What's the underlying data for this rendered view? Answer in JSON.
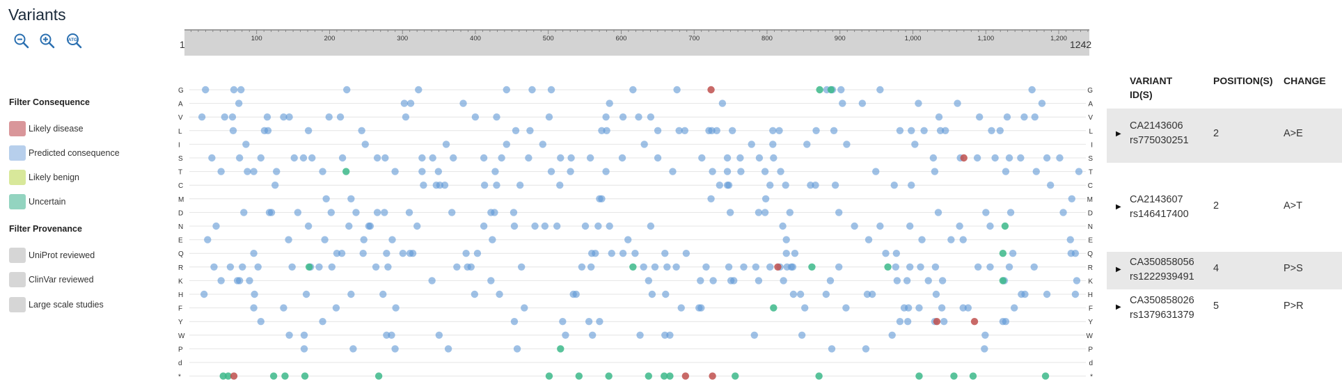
{
  "title": "Variants",
  "toolbar": {
    "zoom_out_icon": "zoom-out-icon",
    "zoom_in_icon": "zoom-in-icon",
    "atg_icon": "atg-zoom-icon",
    "atg_label": "ATG"
  },
  "filters": {
    "consequence_heading": "Filter Consequence",
    "consequence": [
      {
        "label": "Likely disease",
        "color": "#d9969a"
      },
      {
        "label": "Predicted consequence",
        "color": "#b7cfec"
      },
      {
        "label": "Likely benign",
        "color": "#d8e89a"
      },
      {
        "label": "Uncertain",
        "color": "#93d4c0"
      }
    ],
    "provenance_heading": "Filter Provenance",
    "provenance": [
      {
        "label": "UniProt reviewed",
        "color": "#d6d6d6"
      },
      {
        "label": "ClinVar reviewed",
        "color": "#d6d6d6"
      },
      {
        "label": "Large scale studies",
        "color": "#d6d6d6"
      }
    ]
  },
  "ruler": {
    "start": "1",
    "end": "1242",
    "length": 1242,
    "ticks": [
      {
        "value": 100,
        "label": "100"
      },
      {
        "value": 200,
        "label": "200"
      },
      {
        "value": 300,
        "label": "300"
      },
      {
        "value": 400,
        "label": "400"
      },
      {
        "value": 500,
        "label": "500"
      },
      {
        "value": 600,
        "label": "600"
      },
      {
        "value": 700,
        "label": "700"
      },
      {
        "value": 800,
        "label": "800"
      },
      {
        "value": 900,
        "label": "900"
      },
      {
        "value": 1000,
        "label": "1,000"
      },
      {
        "value": 1100,
        "label": "1,100"
      },
      {
        "value": 1200,
        "label": "1,200"
      }
    ]
  },
  "grid": {
    "rows": [
      "G",
      "A",
      "V",
      "L",
      "I",
      "S",
      "T",
      "C",
      "M",
      "D",
      "N",
      "E",
      "Q",
      "R",
      "K",
      "H",
      "F",
      "Y",
      "W",
      "P",
      "d",
      "*"
    ],
    "colors": {
      "predicted": "#5f97d6",
      "disease": "#c0504d",
      "uncertain": "#3cb98a"
    },
    "special_points": [
      {
        "pos": 724,
        "row": "G",
        "cls": "disease"
      },
      {
        "pos": 893,
        "row": "G",
        "cls": "uncertain"
      },
      {
        "pos": 877,
        "row": "G",
        "cls": "uncertain"
      },
      {
        "pos": 1080,
        "row": "S",
        "cls": "disease"
      },
      {
        "pos": 210,
        "row": "T",
        "cls": "uncertain"
      },
      {
        "pos": 1138,
        "row": "N",
        "cls": "uncertain"
      },
      {
        "pos": 1135,
        "row": "Q",
        "cls": "uncertain"
      },
      {
        "pos": 158,
        "row": "R",
        "cls": "uncertain"
      },
      {
        "pos": 614,
        "row": "R",
        "cls": "uncertain"
      },
      {
        "pos": 818,
        "row": "R",
        "cls": "disease"
      },
      {
        "pos": 866,
        "row": "R",
        "cls": "uncertain"
      },
      {
        "pos": 973,
        "row": "R",
        "cls": "uncertain"
      },
      {
        "pos": 1135,
        "row": "K",
        "cls": "uncertain"
      },
      {
        "pos": 812,
        "row": "F",
        "cls": "uncertain"
      },
      {
        "pos": 1042,
        "row": "Y",
        "cls": "disease"
      },
      {
        "pos": 1095,
        "row": "Y",
        "cls": "disease"
      },
      {
        "pos": 512,
        "row": "P",
        "cls": "uncertain"
      },
      {
        "pos": 37,
        "row": "*",
        "cls": "uncertain"
      },
      {
        "pos": 44,
        "row": "*",
        "cls": "uncertain"
      },
      {
        "pos": 52,
        "row": "*",
        "cls": "disease"
      },
      {
        "pos": 108,
        "row": "*",
        "cls": "uncertain"
      },
      {
        "pos": 124,
        "row": "*",
        "cls": "uncertain"
      },
      {
        "pos": 152,
        "row": "*",
        "cls": "uncertain"
      },
      {
        "pos": 256,
        "row": "*",
        "cls": "uncertain"
      },
      {
        "pos": 496,
        "row": "*",
        "cls": "uncertain"
      },
      {
        "pos": 538,
        "row": "*",
        "cls": "uncertain"
      },
      {
        "pos": 580,
        "row": "*",
        "cls": "uncertain"
      },
      {
        "pos": 636,
        "row": "*",
        "cls": "uncertain"
      },
      {
        "pos": 658,
        "row": "*",
        "cls": "uncertain"
      },
      {
        "pos": 666,
        "row": "*",
        "cls": "uncertain"
      },
      {
        "pos": 688,
        "row": "*",
        "cls": "disease"
      },
      {
        "pos": 726,
        "row": "*",
        "cls": "disease"
      },
      {
        "pos": 758,
        "row": "*",
        "cls": "uncertain"
      },
      {
        "pos": 876,
        "row": "*",
        "cls": "uncertain"
      },
      {
        "pos": 1017,
        "row": "*",
        "cls": "uncertain"
      },
      {
        "pos": 1066,
        "row": "*",
        "cls": "uncertain"
      },
      {
        "pos": 1093,
        "row": "*",
        "cls": "uncertain"
      },
      {
        "pos": 1195,
        "row": "*",
        "cls": "uncertain"
      }
    ]
  },
  "table": {
    "headers": {
      "variant_id_line1": "VARIANT",
      "variant_id_line2": "ID(S)",
      "positions": "POSITION(S)",
      "change": "CHANGE"
    },
    "rows": [
      {
        "id1": "CA2143606",
        "id2": "rs775030251",
        "position": "2",
        "change": "A>E",
        "shaded": true
      },
      {
        "id1": "CA2143607",
        "id2": "rs146417400",
        "position": "2",
        "change": "A>T",
        "shaded": false
      },
      {
        "id1": "CA350858056",
        "id2": "rs1222939491",
        "position": "4",
        "change": "P>S",
        "shaded": true
      },
      {
        "id1": "CA350858026",
        "id2": "rs1379631379",
        "position": "5",
        "change": "P>R",
        "shaded": false
      }
    ]
  }
}
